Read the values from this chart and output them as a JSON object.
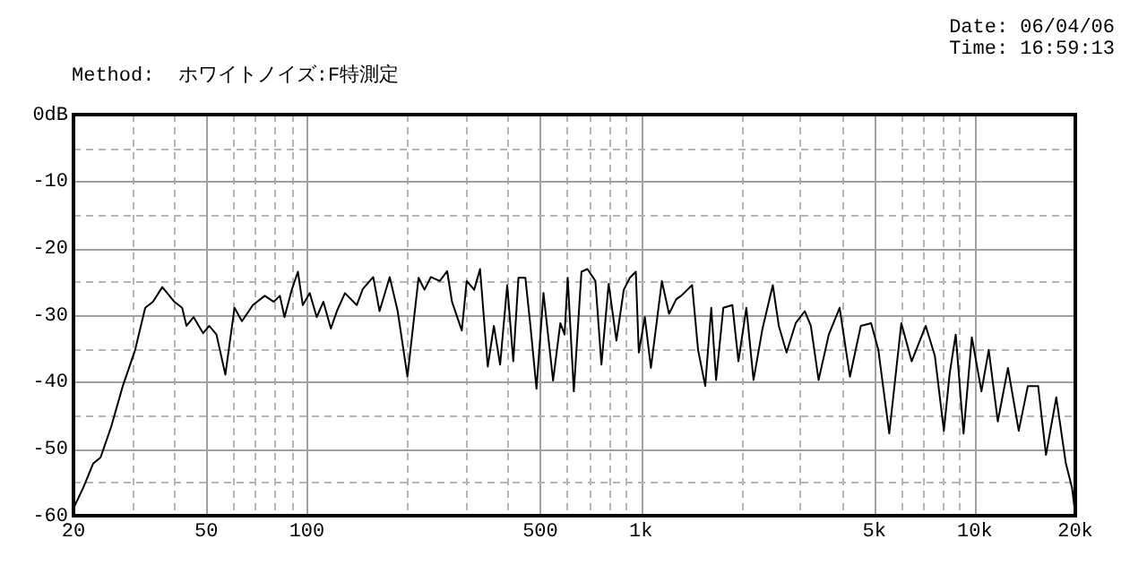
{
  "chart_data": {
    "type": "line",
    "subtitle": "Method:  ホワイトノイズ:F特測定",
    "annotations": [
      "Date: 06/04/06",
      "Time: 16:59:13"
    ],
    "log": "x",
    "grid": true,
    "legend": false,
    "marker": "none",
    "line_style": "solid",
    "xlim": [
      20,
      20000
    ],
    "ylim": [
      -60,
      0
    ],
    "xticks": [
      20,
      {
        "value": 30,
        "label": null
      },
      {
        "value": 40,
        "label": null
      },
      50,
      {
        "value": 60,
        "label": null
      },
      {
        "value": 70,
        "label": null
      },
      {
        "value": 80,
        "label": null
      },
      {
        "value": 90,
        "label": null
      },
      100,
      {
        "value": 200,
        "label": null
      },
      {
        "value": 300,
        "label": null
      },
      {
        "value": 400,
        "label": null
      },
      500,
      {
        "value": 600,
        "label": null
      },
      {
        "value": 700,
        "label": null
      },
      {
        "value": 800,
        "label": null
      },
      {
        "value": 900,
        "label": null
      },
      {
        "value": 1000,
        "label": "1k"
      },
      {
        "value": 2000,
        "label": null
      },
      {
        "value": 3000,
        "label": null
      },
      {
        "value": 4000,
        "label": null
      },
      {
        "value": 5000,
        "label": "5k"
      },
      {
        "value": 6000,
        "label": null
      },
      {
        "value": 7000,
        "label": null
      },
      {
        "value": 8000,
        "label": null
      },
      {
        "value": 9000,
        "label": null
      },
      {
        "value": 10000,
        "label": "10k"
      },
      {
        "value": 20000,
        "label": "20k"
      }
    ],
    "yticks": [
      -60,
      {
        "value": -55,
        "label": null
      },
      -50,
      {
        "value": -45,
        "label": null
      },
      -40,
      {
        "value": -35,
        "label": null
      },
      -30,
      {
        "value": -25,
        "label": null
      },
      -20,
      {
        "value": -15,
        "label": null
      },
      -10,
      {
        "value": -5,
        "label": null
      },
      {
        "value": 0,
        "label": "0dB"
      }
    ],
    "series": [
      {
        "color": "#000000",
        "x": [
          20,
          21.4,
          22.9,
          24.1,
          25.9,
          28.1,
          30.6,
          32.8,
          34.6,
          36.9,
          40.1,
          42.3,
          43.6,
          45.8,
          48.9,
          51,
          53.6,
          57,
          60.7,
          63.9,
          68.9,
          74.8,
          79.6,
          83,
          85.7,
          90.1,
          94,
          97.2,
          102,
          107,
          112,
          118,
          123,
          130,
          141,
          147,
          158,
          165,
          177,
          187,
          200,
          216,
          225,
          235,
          250,
          263,
          272,
          291,
          301,
          317,
          330,
          348,
          363,
          379,
          398,
          415,
          430,
          451,
          467,
          487,
          511,
          546,
          574,
          591,
          604,
          630,
          664,
          692,
          731,
          762,
          801,
          845,
          889,
          927,
          966,
          986,
          1028,
          1072,
          1156,
          1215,
          1277,
          1321,
          1424,
          1484,
          1559,
          1625,
          1680,
          1766,
          1880,
          1960,
          2070,
          2175,
          2314,
          2484,
          2589,
          2731,
          2909,
          3097,
          3229,
          3406,
          3655,
          3938,
          4228,
          4557,
          4893,
          5143,
          5545,
          6026,
          6471,
          7129,
          7595,
          8081,
          8408,
          8767,
          9255,
          9800,
          10470,
          11010,
          11720,
          12570,
          13540,
          14420,
          15480,
          16340,
          17540,
          18740,
          19550,
          20000
        ],
        "values": [
          -58.9,
          -55.8,
          -52.2,
          -51.3,
          -46.8,
          -40.6,
          -35.2,
          -28.9,
          -28,
          -25.8,
          -28,
          -28.9,
          -31.6,
          -30.3,
          -32.7,
          -31.6,
          -32.9,
          -38.9,
          -28.9,
          -30.9,
          -28.5,
          -27.1,
          -28,
          -27.1,
          -30.3,
          -26.2,
          -23.5,
          -28.5,
          -26.7,
          -30.3,
          -28,
          -32,
          -29.4,
          -26.7,
          -28.5,
          -26.1,
          -24.3,
          -29.4,
          -24.3,
          -29.4,
          -39.2,
          -24.4,
          -26.2,
          -24.3,
          -24.9,
          -23.4,
          -28,
          -32.3,
          -24.9,
          -26.2,
          -23.1,
          -37.7,
          -31.6,
          -37.4,
          -25.5,
          -36.9,
          -24.4,
          -24.4,
          -31.6,
          -41,
          -26.7,
          -39.8,
          -31.2,
          -32.9,
          -24.4,
          -41.4,
          -23.5,
          -23.1,
          -24.9,
          -37.4,
          -25.3,
          -33.8,
          -26.2,
          -24.4,
          -23.5,
          -35.6,
          -30.3,
          -37.9,
          -24.9,
          -29.8,
          -27.6,
          -27.1,
          -25.5,
          -35.2,
          -40.6,
          -28.9,
          -39.7,
          -28.9,
          -28.5,
          -36.9,
          -28.9,
          -39.7,
          -32,
          -25.5,
          -31.6,
          -35.6,
          -31.2,
          -29.4,
          -31.6,
          -39.7,
          -32.9,
          -28.9,
          -39.2,
          -31.6,
          -31.2,
          -35.2,
          -47.7,
          -31.2,
          -36.9,
          -31.6,
          -36.1,
          -47.3,
          -38.8,
          -32.9,
          -47.7,
          -33.3,
          -41.4,
          -35.2,
          -45.9,
          -37.9,
          -47.3,
          -40.6,
          -40.6,
          -50.9,
          -42.3,
          -52.2,
          -55.8,
          -59.8
        ]
      }
    ]
  }
}
